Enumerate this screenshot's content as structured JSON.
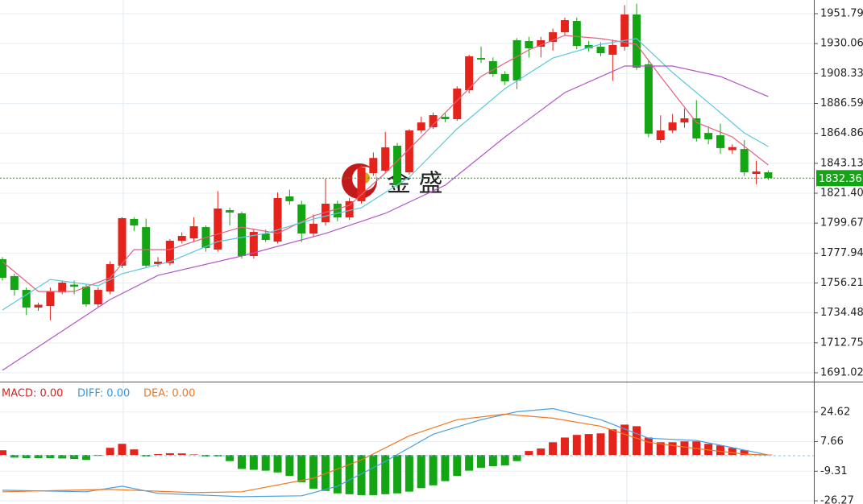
{
  "chart_data": [
    {
      "type": "candlestick",
      "open": [
        1773.5,
        1761.2,
        1751.2,
        1738.4,
        1739.5,
        1749.5,
        1755,
        1753.5,
        1740.7,
        1750,
        1768.8,
        1802.7,
        1796.8,
        1770,
        1770.6,
        1786.9,
        1788.6,
        1796.8,
        1780.5,
        1809.1,
        1806.8,
        1775.8,
        1792.1,
        1786.3,
        1819.1,
        1813.2,
        1792.1,
        1800.3,
        1813.8,
        1803.8,
        1815.6,
        1836,
        1837.7,
        1855.9,
        1836.6,
        1867,
        1869.3,
        1876.9,
        1875.2,
        1896.2,
        1919.6,
        1917.3,
        1907.9,
        1932.5,
        1931.9,
        1927.8,
        1931.3,
        1938.3,
        1946.5,
        1929,
        1927.8,
        1922,
        1927.8,
        1951.2,
        1915,
        1860,
        1867,
        1872.8,
        1875.8,
        1865.2,
        1863.5,
        1852.7,
        1853.5,
        1835.4,
        1836.6
      ],
      "high": [
        1775,
        1763,
        1753,
        1742,
        1753,
        1758,
        1758,
        1755,
        1753,
        1772,
        1804,
        1804,
        1803,
        1775,
        1788,
        1793,
        1804,
        1798,
        1823,
        1811,
        1808,
        1795,
        1795,
        1822,
        1824,
        1816,
        1806,
        1832,
        1816,
        1818,
        1843,
        1851,
        1866,
        1858,
        1868,
        1877,
        1880,
        1880,
        1899,
        1922,
        1928,
        1920,
        1910,
        1934,
        1935,
        1935,
        1941,
        1949,
        1949,
        1932,
        1931,
        1933,
        1958,
        1959,
        1918,
        1878,
        1879,
        1883,
        1889,
        1870,
        1872,
        1857,
        1860,
        1845,
        1838
      ],
      "low": [
        1758,
        1747,
        1733,
        1736,
        1729,
        1748,
        1748,
        1739,
        1739,
        1748,
        1767,
        1794,
        1767,
        1768,
        1769,
        1785,
        1786,
        1779,
        1779,
        1798,
        1774,
        1774,
        1786,
        1785,
        1813,
        1786,
        1790,
        1798,
        1801,
        1802,
        1814,
        1834,
        1836,
        1825,
        1835,
        1865,
        1868,
        1873,
        1874,
        1894,
        1916,
        1906,
        1900,
        1897,
        1920,
        1920,
        1925,
        1936,
        1926,
        1924,
        1921,
        1903,
        1925,
        1911,
        1862,
        1858,
        1865,
        1869,
        1859,
        1857,
        1850,
        1850,
        1834,
        1828,
        1831
      ],
      "close": [
        1760,
        1751.2,
        1738.4,
        1740.4,
        1750,
        1756.5,
        1753.5,
        1740.7,
        1751.2,
        1769.9,
        1803.3,
        1798,
        1768.8,
        1771.7,
        1786.9,
        1790.4,
        1797.4,
        1781.6,
        1810.3,
        1807.4,
        1775.8,
        1793.3,
        1787.5,
        1817.9,
        1815.6,
        1792.1,
        1799.2,
        1813.8,
        1803.8,
        1815.6,
        1840.1,
        1847,
        1854.7,
        1827.2,
        1867,
        1872.8,
        1878.1,
        1875.2,
        1897.4,
        1920.8,
        1918.5,
        1907.9,
        1902.7,
        1903.3,
        1926.6,
        1932.5,
        1938.3,
        1947.1,
        1928.4,
        1926.6,
        1923.1,
        1929,
        1951.2,
        1912.6,
        1864.6,
        1867,
        1872.8,
        1875.8,
        1861.2,
        1860.6,
        1854.2,
        1854.9,
        1836.6,
        1837.2,
        1832.36
      ],
      "up_color": "#e5231b",
      "down_color": "#14a514",
      "ma_lines": [
        {
          "color": "#e5607f",
          "x": [
            0,
            3,
            6,
            9,
            11,
            14,
            17,
            20,
            23,
            26,
            29,
            32,
            36,
            40,
            44,
            47,
            50,
            53,
            55,
            58,
            61,
            64
          ],
          "values": [
            1771.7,
            1750.1,
            1750.1,
            1760,
            1780.5,
            1780.5,
            1789.2,
            1796.8,
            1792.2,
            1805,
            1812.6,
            1836,
            1871.1,
            1906.2,
            1925.5,
            1936,
            1933.7,
            1929.6,
            1906.2,
            1872.8,
            1862.3,
            1841.9
          ]
        },
        {
          "color": "#5bc8dc",
          "x": [
            0,
            4,
            8,
            10,
            14,
            18,
            22,
            26,
            30,
            34,
            38,
            42,
            46,
            50,
            53,
            56,
            60,
            62,
            64
          ],
          "values": [
            1736.6,
            1758.8,
            1754.2,
            1763,
            1771.7,
            1786.3,
            1792.2,
            1802.7,
            1810.9,
            1833,
            1868.2,
            1897.4,
            1919.6,
            1929.6,
            1933.7,
            1909.1,
            1879.9,
            1865.2,
            1855.3
          ]
        },
        {
          "color": "#b455c8",
          "x": [
            0,
            9,
            13,
            20,
            27,
            32,
            37,
            42,
            47,
            52,
            56,
            60,
            64
          ],
          "values": [
            1692.8,
            1744.2,
            1761.7,
            1775.8,
            1792.2,
            1806.8,
            1827.2,
            1862.3,
            1894.5,
            1913.8,
            1913.8,
            1906.2,
            1891.6
          ]
        }
      ],
      "last_price": 1832.36,
      "last_price_color": "#14a514",
      "ylim": [
        1685.17,
        1961.73
      ],
      "yticks": [
        1951.79,
        1930.06,
        1908.33,
        1886.59,
        1864.86,
        1843.13,
        {
          "value": 1821.4,
          "label": "1821.40"
        },
        1799.67,
        1777.94,
        1756.21,
        1734.48,
        1712.75,
        1691.02
      ],
      "grid": true,
      "watermark": "金 盛"
    },
    {
      "type": "macd",
      "macd_label": "MACD: 0.00",
      "diff_label": "DIFF: 0.00",
      "dea_label": "DEA: 0.00",
      "histogram": [
        2.7,
        -1.5,
        -1.8,
        -1.8,
        -1.8,
        -2,
        -2.3,
        -2.8,
        -0.5,
        4.1,
        6.4,
        3.2,
        -0.8,
        0.5,
        1,
        0.9,
        0.3,
        -0.9,
        -0.8,
        -3.5,
        -8,
        -8.5,
        -9,
        -10,
        -12,
        -15.6,
        -19.3,
        -20.6,
        -22,
        -22.5,
        -23,
        -23,
        -22.5,
        -22,
        -21,
        -19,
        -17.4,
        -15,
        -12,
        -9,
        -7.3,
        -6.4,
        -6,
        -3.5,
        2.3,
        3.7,
        7.3,
        10,
        11.5,
        12,
        12.4,
        14.7,
        17.4,
        16.5,
        10,
        7.3,
        7.3,
        7.8,
        7.8,
        6.4,
        5.5,
        4.1,
        2.8,
        0.5,
        0.2
      ],
      "series": [
        {
          "color": "#4aa0e0",
          "x": [
            0,
            7,
            10,
            13,
            20,
            25,
            28,
            32,
            36,
            40,
            43,
            46,
            50,
            54,
            58,
            62,
            64
          ],
          "values": [
            -20.2,
            -21.1,
            -17.9,
            -22,
            -23.9,
            -23.4,
            -17.9,
            -3.7,
            11.9,
            20.2,
            24.8,
            26.6,
            20.2,
            9.6,
            8.3,
            2.8,
            0
          ]
        },
        {
          "color": "#f07820",
          "x": [
            0,
            9,
            16,
            20,
            26,
            30,
            34,
            38,
            42,
            46,
            50,
            54,
            58,
            62,
            64
          ],
          "values": [
            -21.1,
            -19.7,
            -21.6,
            -21.1,
            -13.3,
            -2.8,
            11,
            20.2,
            23.4,
            21.1,
            16.5,
            7.3,
            3.7,
            0.5,
            0
          ]
        }
      ],
      "up_color": "#e5231b",
      "down_color": "#14a514",
      "ylim": [
        -28.1,
        41.59
      ],
      "yticks": [
        24.62,
        7.66,
        -9.31,
        -26.27
      ],
      "grid": true
    }
  ]
}
